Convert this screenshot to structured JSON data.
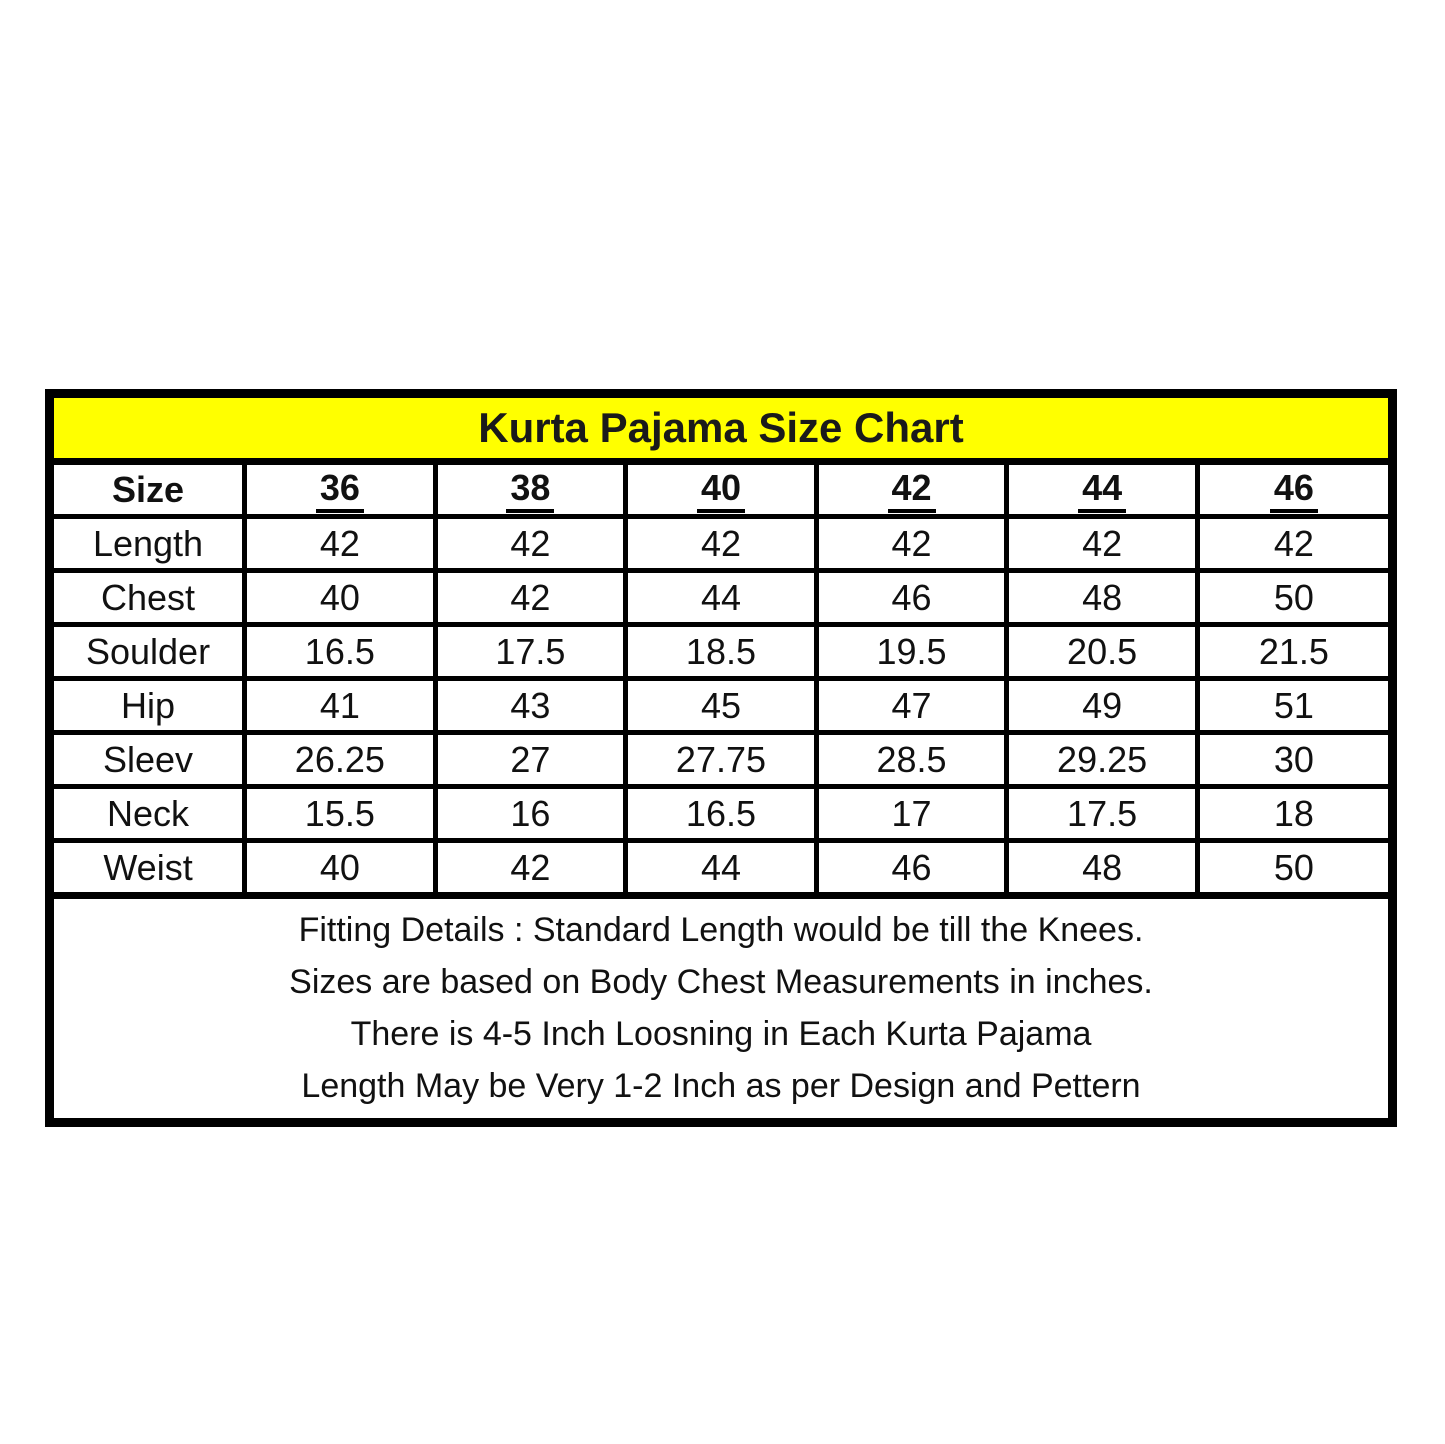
{
  "style": {
    "title_bg": "#FFFF00",
    "border_color": "#000000",
    "cell_bg": "#FFFFFF",
    "text_color": "#111111"
  },
  "chart_data": {
    "type": "table",
    "title": "Kurta Pajama Size Chart",
    "columns": [
      "Size",
      "36",
      "38",
      "40",
      "42",
      "44",
      "46"
    ],
    "rows": [
      {
        "label": "Length",
        "values": [
          "42",
          "42",
          "42",
          "42",
          "42",
          "42"
        ]
      },
      {
        "label": "Chest",
        "values": [
          "40",
          "42",
          "44",
          "46",
          "48",
          "50"
        ]
      },
      {
        "label": "Soulder",
        "values": [
          "16.5",
          "17.5",
          "18.5",
          "19.5",
          "20.5",
          "21.5"
        ]
      },
      {
        "label": "Hip",
        "values": [
          "41",
          "43",
          "45",
          "47",
          "49",
          "51"
        ]
      },
      {
        "label": "Sleev",
        "values": [
          "26.25",
          "27",
          "27.75",
          "28.5",
          "29.25",
          "30"
        ]
      },
      {
        "label": "Neck",
        "values": [
          "15.5",
          "16",
          "16.5",
          "17",
          "17.5",
          "18"
        ]
      },
      {
        "label": "Weist",
        "values": [
          "40",
          "42",
          "44",
          "46",
          "48",
          "50"
        ]
      }
    ],
    "notes": [
      "Fitting Details : Standard Length would be till the Knees.",
      "Sizes are based on Body Chest Measurements in inches.",
      "There is 4-5 Inch Loosning in Each Kurta Pajama",
      "Length May be Very 1-2 Inch as per Design and Pettern"
    ]
  }
}
